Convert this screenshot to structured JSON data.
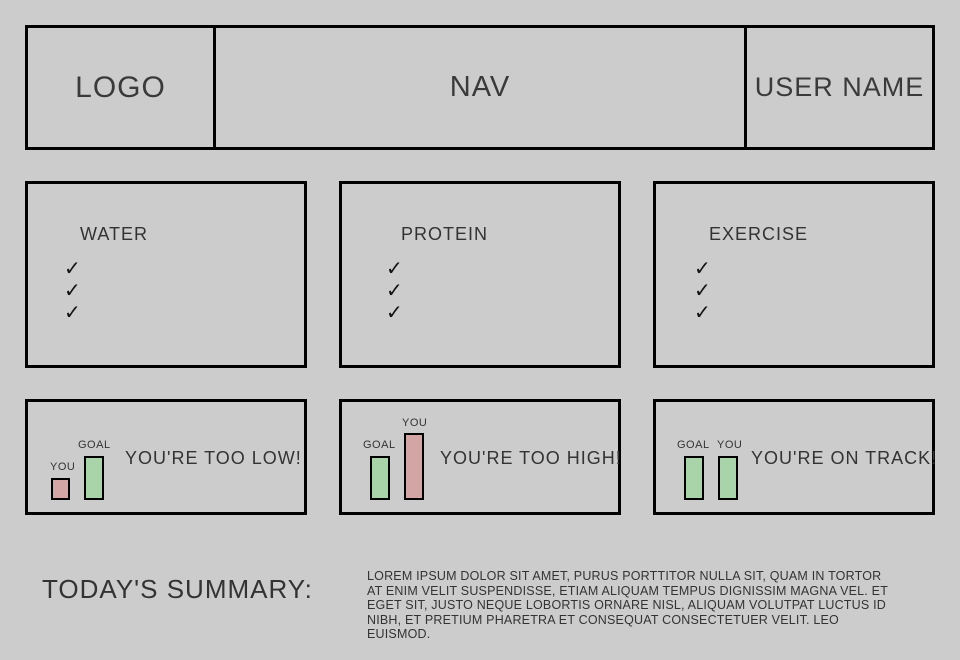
{
  "header": {
    "logo": "LOGO",
    "nav": "NAV",
    "user": "USER NAME"
  },
  "categories": [
    {
      "title": "WATER",
      "checks": [
        "✓",
        "✓",
        "✓"
      ]
    },
    {
      "title": "PROTEIN",
      "checks": [
        "✓",
        "✓",
        "✓"
      ]
    },
    {
      "title": "EXERCISE",
      "checks": [
        "✓",
        "✓",
        "✓"
      ]
    }
  ],
  "status": [
    {
      "you_label": "YOU",
      "goal_label": "GOAL",
      "message": "YOU'RE TOO LOW!",
      "you_level": 0.5,
      "goal_level": 1.0
    },
    {
      "you_label": "YOU",
      "goal_label": "GOAL",
      "message": "YOU'RE TOO HIGH!",
      "you_level": 1.6,
      "goal_level": 1.0
    },
    {
      "you_label": "YOU",
      "goal_label": "GOAL",
      "message": "YOU'RE ON TRACK!",
      "you_level": 1.0,
      "goal_level": 1.0
    }
  ],
  "summary": {
    "title": "TODAY'S SUMMARY:",
    "body": "LOREM IPSUM DOLOR SIT AMET, PURUS PORTTITOR NULLA SIT, QUAM IN TORTOR AT ENIM VELIT SUSPENDISSE, ETIAM ALIQUAM TEMPUS DIGNISSIM MAGNA VEL. ET EGET SIT, JUSTO NEQUE LOBORTIS ORNARE NISL, ALIQUAM VOLUTPAT LUCTUS ID NIBH, ET PRETIUM PHARETRA ET CONSEQUAT CONSECTETUER VELIT. LEO EUISMOD."
  },
  "colors": {
    "you_low": "#d4a5a5",
    "you_high": "#d4a5a5",
    "goal": "#a9d4a9",
    "you_on_track": "#a9d4a9",
    "background": "#cccccc",
    "border": "#000000"
  }
}
